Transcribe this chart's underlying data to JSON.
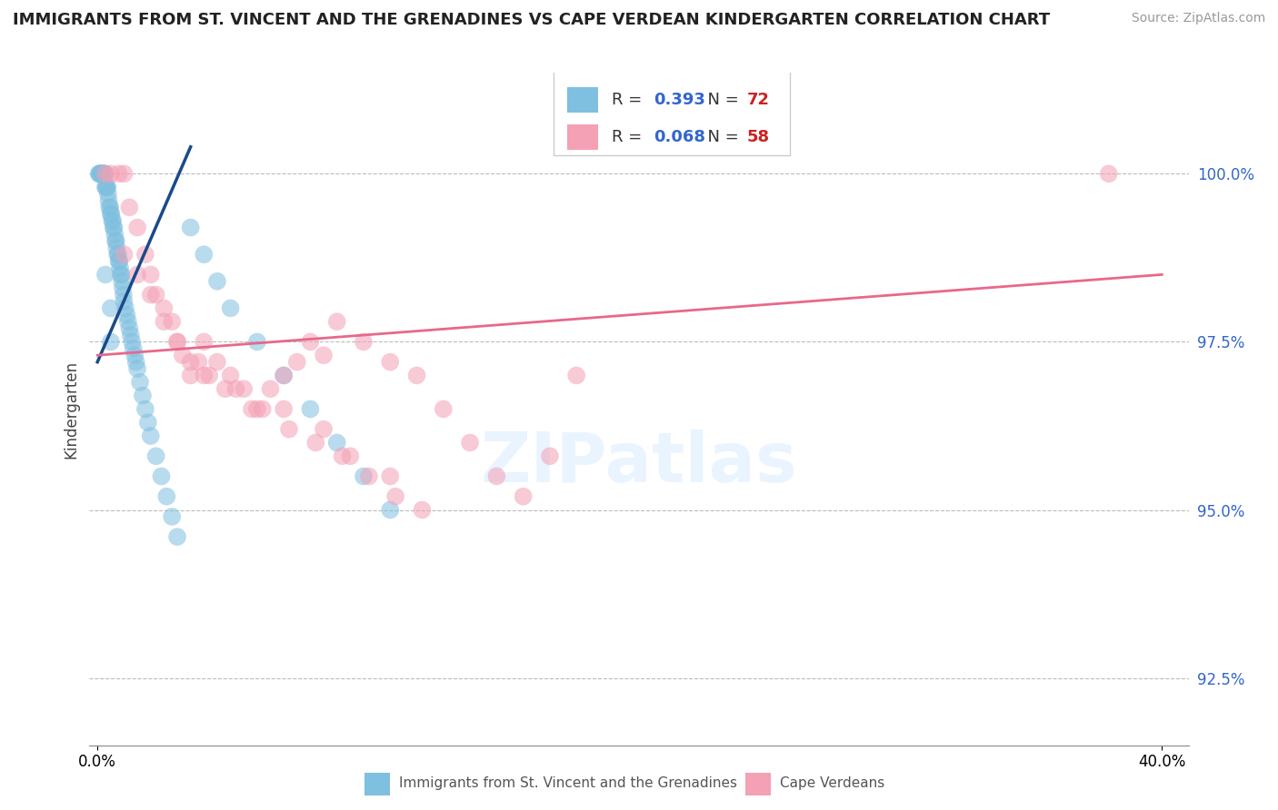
{
  "title": "IMMIGRANTS FROM ST. VINCENT AND THE GRENADINES VS CAPE VERDEAN KINDERGARTEN CORRELATION CHART",
  "source": "Source: ZipAtlas.com",
  "ylabel": "Kindergarten",
  "ylim": [
    91.5,
    101.5
  ],
  "xlim": [
    -0.3,
    41.0
  ],
  "yticks": [
    92.5,
    95.0,
    97.5,
    100.0
  ],
  "ytick_labels": [
    "92.5%",
    "95.0%",
    "97.5%",
    "100.0%"
  ],
  "legend_label1": "Immigrants from St. Vincent and the Grenadines",
  "legend_label2": "Cape Verdeans",
  "R1": "0.393",
  "N1": "72",
  "R2": "0.068",
  "N2": "58",
  "color_blue": "#7fbfdf",
  "color_pink": "#f4a0b5",
  "color_blue_line": "#1a4a8a",
  "color_pink_line": "#e8688a",
  "color_grid": "#bbbbbb",
  "color_R": "#3366cc",
  "color_N": "#cc2222",
  "blue_line_x0": 0.0,
  "blue_line_y0": 97.2,
  "blue_line_x1": 3.5,
  "blue_line_y1": 100.4,
  "pink_line_x0": 0.0,
  "pink_line_y0": 97.3,
  "pink_line_x1": 40.0,
  "pink_line_y1": 98.5,
  "blue_x": [
    0.05,
    0.08,
    0.1,
    0.12,
    0.15,
    0.18,
    0.2,
    0.22,
    0.25,
    0.28,
    0.3,
    0.32,
    0.35,
    0.38,
    0.4,
    0.42,
    0.45,
    0.48,
    0.5,
    0.52,
    0.55,
    0.58,
    0.6,
    0.62,
    0.65,
    0.68,
    0.7,
    0.72,
    0.75,
    0.78,
    0.8,
    0.82,
    0.85,
    0.88,
    0.9,
    0.92,
    0.95,
    0.98,
    1.0,
    1.05,
    1.1,
    1.15,
    1.2,
    1.25,
    1.3,
    1.35,
    1.4,
    1.45,
    1.5,
    1.6,
    1.7,
    1.8,
    1.9,
    2.0,
    2.2,
    2.4,
    2.6,
    2.8,
    3.0,
    3.5,
    4.0,
    4.5,
    5.0,
    6.0,
    7.0,
    8.0,
    9.0,
    10.0,
    11.0,
    0.3,
    0.5,
    0.5
  ],
  "blue_y": [
    100.0,
    100.0,
    100.0,
    100.0,
    100.0,
    100.0,
    100.0,
    100.0,
    100.0,
    100.0,
    99.8,
    99.8,
    99.8,
    99.8,
    99.7,
    99.6,
    99.5,
    99.5,
    99.4,
    99.4,
    99.3,
    99.3,
    99.2,
    99.2,
    99.1,
    99.0,
    99.0,
    98.9,
    98.8,
    98.8,
    98.7,
    98.7,
    98.6,
    98.5,
    98.5,
    98.4,
    98.3,
    98.2,
    98.1,
    98.0,
    97.9,
    97.8,
    97.7,
    97.6,
    97.5,
    97.4,
    97.3,
    97.2,
    97.1,
    96.9,
    96.7,
    96.5,
    96.3,
    96.1,
    95.8,
    95.5,
    95.2,
    94.9,
    94.6,
    99.2,
    98.8,
    98.4,
    98.0,
    97.5,
    97.0,
    96.5,
    96.0,
    95.5,
    95.0,
    98.5,
    98.0,
    97.5
  ],
  "pink_x": [
    0.3,
    0.5,
    0.8,
    1.0,
    1.2,
    1.5,
    1.8,
    2.0,
    2.2,
    2.5,
    2.8,
    3.0,
    3.2,
    3.5,
    4.0,
    4.5,
    5.0,
    5.5,
    6.0,
    6.5,
    7.0,
    7.5,
    8.0,
    8.5,
    9.0,
    10.0,
    11.0,
    12.0,
    13.0,
    14.0,
    15.0,
    16.0,
    17.0,
    18.0,
    3.8,
    4.2,
    5.2,
    6.2,
    7.2,
    8.2,
    9.2,
    10.2,
    11.2,
    12.2,
    38.0,
    1.0,
    1.5,
    2.0,
    2.5,
    3.0,
    3.5,
    4.0,
    4.8,
    5.8,
    7.0,
    8.5,
    9.5,
    11.0
  ],
  "pink_y": [
    100.0,
    100.0,
    100.0,
    100.0,
    99.5,
    99.2,
    98.8,
    98.5,
    98.2,
    98.0,
    97.8,
    97.5,
    97.3,
    97.0,
    97.5,
    97.2,
    97.0,
    96.8,
    96.5,
    96.8,
    97.0,
    97.2,
    97.5,
    97.3,
    97.8,
    97.5,
    97.2,
    97.0,
    96.5,
    96.0,
    95.5,
    95.2,
    95.8,
    97.0,
    97.2,
    97.0,
    96.8,
    96.5,
    96.2,
    96.0,
    95.8,
    95.5,
    95.2,
    95.0,
    100.0,
    98.8,
    98.5,
    98.2,
    97.8,
    97.5,
    97.2,
    97.0,
    96.8,
    96.5,
    96.5,
    96.2,
    95.8,
    95.5
  ]
}
